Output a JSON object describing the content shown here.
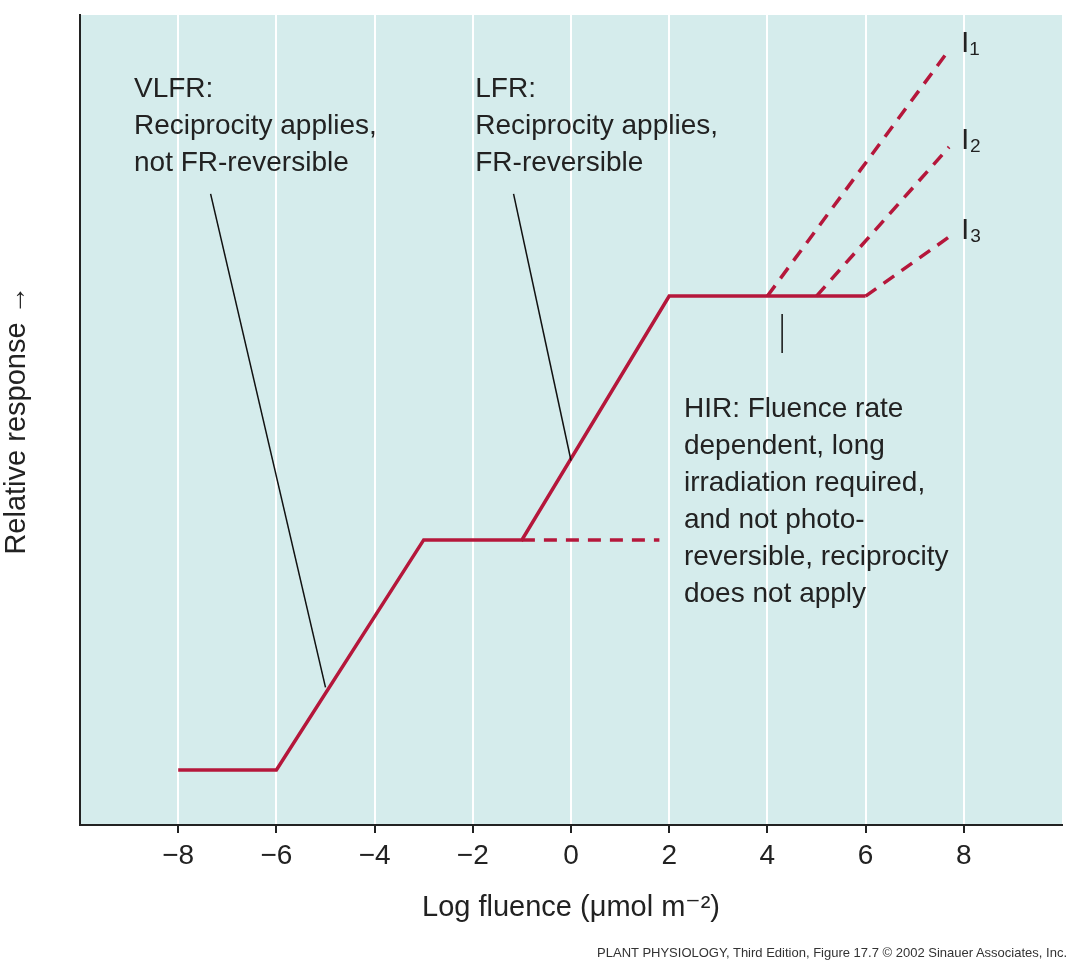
{
  "chart_data": {
    "type": "line",
    "xlabel": "Log fluence (μmol m⁻²)",
    "ylabel": "Relative response →",
    "xlim": [
      -10,
      10
    ],
    "xticks": [
      {
        "value": -8,
        "label": "−8"
      },
      {
        "value": -6,
        "label": "−6"
      },
      {
        "value": -4,
        "label": "−4"
      },
      {
        "value": -2,
        "label": "−2"
      },
      0,
      2,
      4,
      6,
      8
    ],
    "ylim": [
      0,
      100
    ],
    "yticks": [],
    "tick_labels": "x",
    "grid": "x",
    "marker": "none",
    "series": [
      {
        "x": [
          -8,
          -6,
          -3,
          -1,
          2,
          6
        ],
        "values": [
          6.8,
          6.8,
          35.2,
          35.2,
          65.3,
          65.3
        ],
        "color": "#b5173b",
        "line_style": "solid"
      },
      {
        "x": [
          -1,
          1.8
        ],
        "values": [
          35.2,
          35.2
        ],
        "color": "#b5173b",
        "line_style": "dashed"
      },
      {
        "name": "I₁",
        "x": [
          4,
          7.7
        ],
        "values": [
          65.3,
          95.7
        ],
        "color": "#b5173b",
        "line_style": "dashed"
      },
      {
        "name": "I₂",
        "x": [
          5,
          7.7
        ],
        "values": [
          65.3,
          83.7
        ],
        "color": "#b5173b",
        "line_style": "dashed"
      },
      {
        "name": "I₃",
        "x": [
          6,
          7.7
        ],
        "values": [
          65.3,
          72.6
        ],
        "color": "#b5173b",
        "line_style": "dashed"
      }
    ],
    "annotations": [
      {
        "text": [
          "VLFR:",
          "Reciprocity applies,",
          "not FR-reversible"
        ],
        "xy": [
          -5,
          17
        ],
        "xytext": [
          -8.9,
          92.6
        ]
      },
      {
        "text": [
          "LFR:",
          "Reciprocity applies,",
          "FR-reversible"
        ],
        "xy": [
          0,
          45
        ],
        "xytext": [
          -1.95,
          92.6
        ]
      },
      {
        "text": [
          "HIR: Fluence rate",
          "dependent, long",
          "irradiation required,",
          "and not photo-",
          "reversible, reciprocity",
          "does not apply"
        ],
        "xy": [
          4.3,
          65.3
        ],
        "xytext": [
          2.3,
          53.1
        ]
      }
    ],
    "credit": "PLANT PHYSIOLOGY, Third Edition, Figure 17.7  © 2002 Sinauer Associates, Inc."
  }
}
